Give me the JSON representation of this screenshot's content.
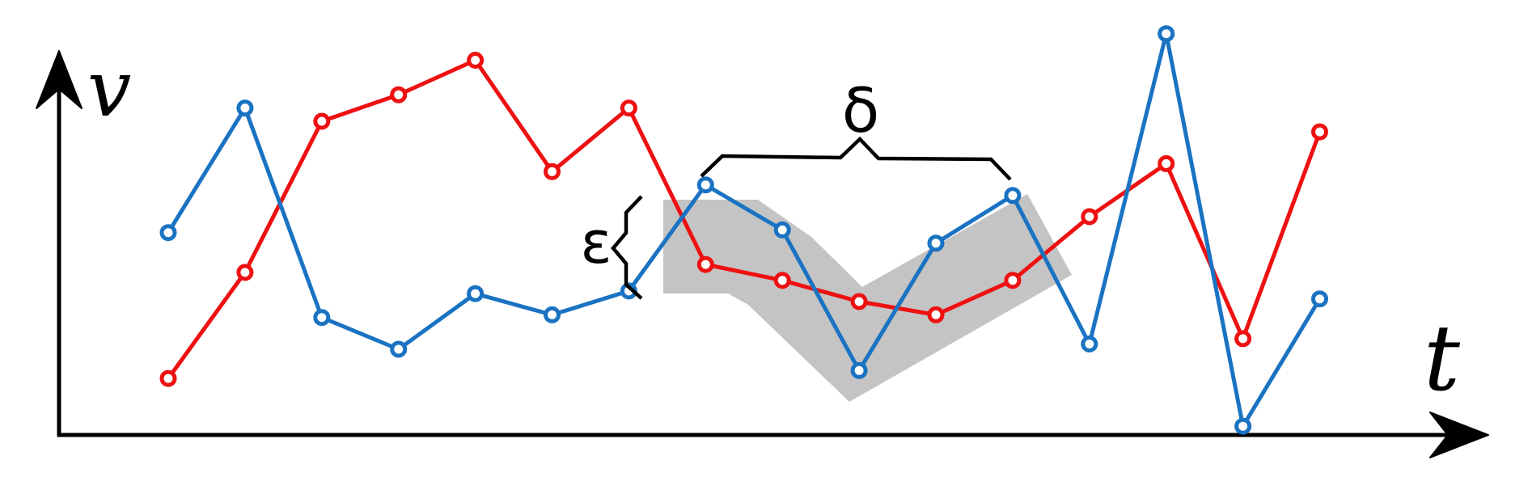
{
  "axes": {
    "x_label": "t",
    "y_label": "v"
  },
  "annotations": {
    "delta_label": "δ",
    "epsilon_label": "ε"
  },
  "colors": {
    "axis": "#000000",
    "red_series": "#ee1111",
    "blue_series": "#1a73c2",
    "region": "#c4c4c4",
    "brace": "#000000"
  },
  "chart_data": {
    "type": "line",
    "x": [
      1,
      2,
      3,
      4,
      5,
      6,
      7,
      8,
      9,
      10,
      11,
      12,
      13,
      14,
      15,
      16
    ],
    "series": [
      {
        "color": "red",
        "values": [
          0.21,
          0.61,
          1.18,
          1.28,
          1.41,
          0.99,
          1.23,
          0.64,
          0.58,
          0.5,
          0.45,
          0.58,
          0.82,
          1.02,
          0.36,
          1.14
        ]
      },
      {
        "color": "blue",
        "values": [
          0.76,
          1.23,
          0.44,
          0.32,
          0.53,
          0.45,
          0.54,
          0.94,
          0.77,
          0.24,
          0.72,
          0.9,
          0.34,
          1.51,
          0.03,
          0.51
        ]
      }
    ],
    "ylim": [
      0,
      1.6
    ],
    "grid": false,
    "legend": "none"
  }
}
